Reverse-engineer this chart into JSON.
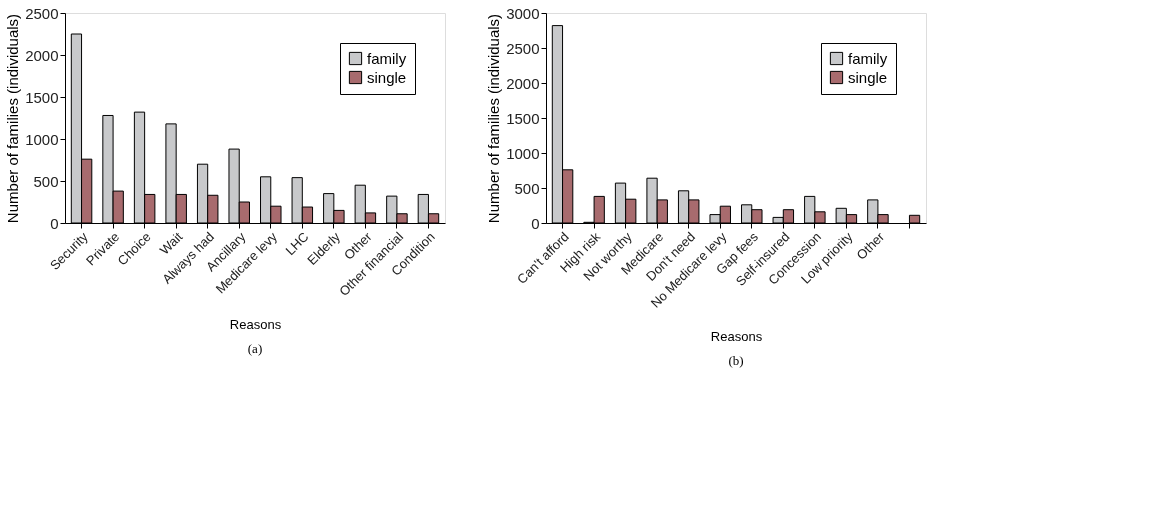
{
  "chart_data": [
    {
      "type": "bar",
      "xlabel": "Reasons",
      "ylabel": "Number of families (individuals)",
      "annotations": [
        "(a)"
      ],
      "categories": [
        "Security",
        "Private",
        "Choice",
        "Wait",
        "Always had",
        "Ancillary",
        "Medicare levy",
        "LHC",
        "Elderly",
        "Other",
        "Other financial",
        "Condition"
      ],
      "series": [
        {
          "name": "family",
          "color": "#c8c9cb",
          "values": [
            2250,
            1280,
            1320,
            1180,
            700,
            880,
            550,
            540,
            350,
            450,
            320,
            340
          ]
        },
        {
          "name": "single",
          "color": "#a86b6e",
          "values": [
            760,
            380,
            340,
            340,
            330,
            250,
            200,
            190,
            150,
            120,
            110,
            110
          ]
        }
      ],
      "ylim": [
        0,
        2500
      ],
      "yticks": [
        0,
        500,
        1000,
        1500,
        2000,
        2500
      ],
      "grid": false,
      "legend": "top right"
    },
    {
      "type": "bar",
      "xlabel": "Reasons",
      "ylabel": "Number of families (individuals)",
      "annotations": [
        "(b)"
      ],
      "categories": [
        "Can't afford",
        "High risk",
        "Not worthy",
        "Medicare",
        "Don't need",
        "No Medicare levy",
        "Gap fees",
        "Self-insured",
        "Concession",
        "Low priority",
        "Other",
        null
      ],
      "series": [
        {
          "name": "family",
          "color": "#c8c9cb",
          "values": [
            2820,
            10,
            570,
            640,
            460,
            120,
            260,
            80,
            380,
            210,
            330,
            null
          ]
        },
        {
          "name": "single",
          "color": "#a86b6e",
          "values": [
            760,
            380,
            340,
            330,
            330,
            240,
            190,
            190,
            160,
            120,
            120,
            110
          ]
        }
      ],
      "ylim": [
        0,
        3000
      ],
      "yticks": [
        0,
        500,
        1000,
        1500,
        2000,
        2500,
        3000
      ],
      "grid": false,
      "legend": "top right"
    }
  ]
}
